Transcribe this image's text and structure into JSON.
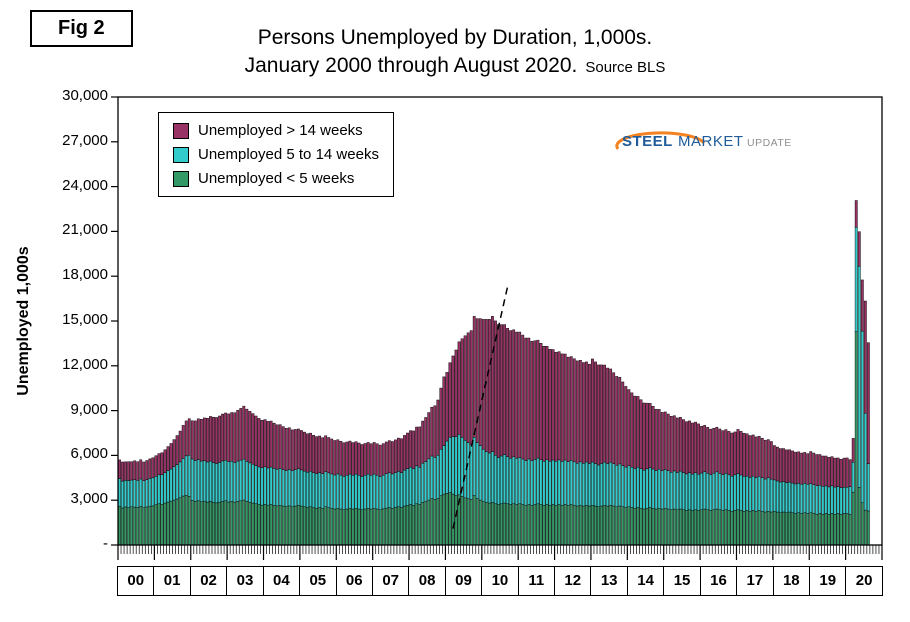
{
  "fig_label": "Fig 2",
  "title": {
    "line1": "Persons Unemployed by Duration, 1,000s.",
    "line2": "January 2000 through August 2020.",
    "source": "Source BLS"
  },
  "logo": {
    "word1": "STEEL",
    "word2": "MARKET",
    "word3": "UPDATE"
  },
  "legend": {
    "items": [
      {
        "label": "Unemployed > 14 weeks",
        "color": "#993366"
      },
      {
        "label": "Unemployed 5 to 14 weeks",
        "color": "#33CCCC"
      },
      {
        "label": "Unemployed < 5 weeks",
        "color": "#339966"
      }
    ]
  },
  "y_axis": {
    "title": "Unemployed 1,000s",
    "tick_values": [
      0,
      3000,
      6000,
      9000,
      12000,
      15000,
      18000,
      21000,
      24000,
      27000,
      30000
    ],
    "tick_labels": [
      "-",
      "3,000",
      "6,000",
      "9,000",
      "12,000",
      "15,000",
      "18,000",
      "21,000",
      "24,000",
      "27,000",
      "30,000"
    ]
  },
  "x_axis": {
    "year_labels": [
      "00",
      "01",
      "02",
      "03",
      "04",
      "05",
      "06",
      "07",
      "08",
      "09",
      "10",
      "11",
      "12",
      "13",
      "14",
      "15",
      "16",
      "17",
      "18",
      "19",
      "20"
    ]
  },
  "chart_data": {
    "type": "bar",
    "stacked": true,
    "title": "Persons Unemployed by Duration, 1,000s. January 2000 through August 2020.",
    "source": "BLS",
    "x_unit": "month",
    "x_start": "2000-01",
    "x_end": "2020-08",
    "x_axis_span_years": [
      "2000",
      "2020"
    ],
    "ylabel": "Unemployed 1,000s",
    "ylim": [
      0,
      30000
    ],
    "y_tick_step": 3000,
    "grid": false,
    "legend_position": "top-left-inside",
    "series": [
      {
        "name": "Unemployed < 5 weeks",
        "color": "#339966",
        "values": [
          2600,
          2480,
          2550,
          2500,
          2560,
          2540,
          2520,
          2580,
          2500,
          2550,
          2600,
          2620,
          2700,
          2760,
          2730,
          2810,
          2880,
          2940,
          3010,
          3080,
          3160,
          3280,
          3320,
          3260,
          2980,
          2920,
          2960,
          2900,
          2940,
          2880,
          2920,
          2860,
          2820,
          2870,
          2930,
          2960,
          2880,
          2930,
          2870,
          2920,
          2960,
          3010,
          2920,
          2860,
          2810,
          2760,
          2710,
          2670,
          2720,
          2670,
          2710,
          2660,
          2620,
          2660,
          2610,
          2570,
          2620,
          2560,
          2610,
          2660,
          2610,
          2560,
          2510,
          2560,
          2500,
          2460,
          2510,
          2460,
          2560,
          2500,
          2460,
          2410,
          2460,
          2410,
          2360,
          2410,
          2460,
          2410,
          2460,
          2410,
          2360,
          2410,
          2460,
          2410,
          2460,
          2410,
          2360,
          2420,
          2470,
          2510,
          2460,
          2510,
          2560,
          2510,
          2610,
          2660,
          2710,
          2660,
          2760,
          2710,
          2860,
          2910,
          3010,
          3110,
          3060,
          3110,
          3310,
          3410,
          3460,
          3510,
          3410,
          3310,
          3360,
          3260,
          3160,
          3110,
          3060,
          3310,
          3110,
          3010,
          2910,
          2860,
          2810,
          2860,
          2760,
          2710,
          2760,
          2810,
          2760,
          2710,
          2760,
          2710,
          2760,
          2710,
          2660,
          2710,
          2660,
          2710,
          2760,
          2710,
          2660,
          2710,
          2660,
          2710,
          2660,
          2710,
          2660,
          2710,
          2660,
          2710,
          2660,
          2610,
          2660,
          2610,
          2660,
          2610,
          2660,
          2610,
          2560,
          2610,
          2660,
          2610,
          2660,
          2610,
          2560,
          2610,
          2560,
          2510,
          2560,
          2510,
          2460,
          2510,
          2460,
          2410,
          2460,
          2510,
          2460,
          2410,
          2460,
          2410,
          2460,
          2410,
          2360,
          2410,
          2360,
          2410,
          2360,
          2310,
          2360,
          2310,
          2360,
          2310,
          2360,
          2410,
          2360,
          2310,
          2360,
          2410,
          2360,
          2310,
          2360,
          2310,
          2260,
          2310,
          2360,
          2310,
          2260,
          2310,
          2260,
          2310,
          2260,
          2310,
          2260,
          2210,
          2260,
          2210,
          2260,
          2210,
          2160,
          2210,
          2160,
          2210,
          2160,
          2110,
          2160,
          2110,
          2160,
          2110,
          2160,
          2110,
          2060,
          2110,
          2060,
          2110,
          2060,
          2110,
          2060,
          2110,
          2060,
          2110,
          2110,
          2060,
          3540,
          14280,
          3860,
          2830,
          2340,
          2280
        ]
      },
      {
        "name": "Unemployed 5 to 14 weeks",
        "color": "#33CCCC",
        "values": [
          1850,
          1800,
          1780,
          1820,
          1790,
          1830,
          1810,
          1840,
          1800,
          1830,
          1860,
          1880,
          1900,
          1940,
          1980,
          2030,
          2090,
          2150,
          2230,
          2310,
          2400,
          2520,
          2650,
          2750,
          2780,
          2740,
          2760,
          2720,
          2700,
          2680,
          2700,
          2660,
          2640,
          2660,
          2700,
          2720,
          2700,
          2680,
          2660,
          2700,
          2720,
          2740,
          2680,
          2640,
          2600,
          2560,
          2520,
          2500,
          2520,
          2490,
          2510,
          2470,
          2450,
          2470,
          2440,
          2420,
          2440,
          2410,
          2430,
          2450,
          2420,
          2390,
          2360,
          2380,
          2340,
          2320,
          2340,
          2310,
          2360,
          2330,
          2300,
          2280,
          2300,
          2270,
          2240,
          2260,
          2290,
          2260,
          2290,
          2260,
          2230,
          2260,
          2290,
          2260,
          2290,
          2260,
          2230,
          2260,
          2300,
          2330,
          2300,
          2330,
          2370,
          2340,
          2410,
          2460,
          2500,
          2460,
          2540,
          2500,
          2620,
          2680,
          2760,
          2850,
          2810,
          2900,
          3100,
          3250,
          3500,
          3700,
          3850,
          3950,
          4050,
          3950,
          3850,
          3750,
          3650,
          3900,
          3750,
          3650,
          3500,
          3400,
          3350,
          3400,
          3250,
          3150,
          3200,
          3250,
          3150,
          3100,
          3150,
          3100,
          3100,
          3050,
          3000,
          3050,
          2980,
          3020,
          3060,
          3000,
          2950,
          3000,
          2950,
          2980,
          2950,
          2990,
          2940,
          2980,
          2920,
          2960,
          2910,
          2870,
          2910,
          2860,
          2900,
          2850,
          2900,
          2850,
          2800,
          2850,
          2890,
          2840,
          2880,
          2830,
          2780,
          2820,
          2760,
          2710,
          2750,
          2700,
          2650,
          2700,
          2650,
          2600,
          2640,
          2680,
          2630,
          2580,
          2620,
          2570,
          2600,
          2560,
          2510,
          2550,
          2500,
          2540,
          2490,
          2450,
          2490,
          2440,
          2480,
          2430,
          2460,
          2500,
          2450,
          2410,
          2450,
          2490,
          2440,
          2400,
          2440,
          2390,
          2350,
          2390,
          2420,
          2380,
          2340,
          2300,
          2270,
          2300,
          2260,
          2290,
          2250,
          2210,
          2240,
          2200,
          2100,
          2080,
          2060,
          2040,
          2020,
          2000,
          1990,
          1980,
          1970,
          1960,
          1970,
          1960,
          1950,
          1930,
          1910,
          1890,
          1870,
          1850,
          1830,
          1850,
          1820,
          1800,
          1780,
          1760,
          1760,
          1850,
          2000,
          7000,
          14810,
          11490,
          6490,
          3170
        ]
      },
      {
        "name": "Unemployed > 14 weeks",
        "color": "#993366",
        "values": [
          1250,
          1280,
          1240,
          1260,
          1230,
          1270,
          1250,
          1290,
          1260,
          1280,
          1310,
          1340,
          1380,
          1420,
          1470,
          1540,
          1620,
          1710,
          1820,
          1940,
          2070,
          2210,
          2340,
          2450,
          2560,
          2650,
          2730,
          2800,
          2870,
          2930,
          2990,
          3040,
          3080,
          3110,
          3140,
          3160,
          3200,
          3260,
          3330,
          3400,
          3470,
          3550,
          3500,
          3450,
          3390,
          3320,
          3250,
          3180,
          3160,
          3120,
          3080,
          3030,
          2980,
          2930,
          2880,
          2830,
          2790,
          2740,
          2700,
          2660,
          2640,
          2610,
          2580,
          2550,
          2510,
          2480,
          2450,
          2420,
          2400,
          2370,
          2340,
          2310,
          2290,
          2270,
          2250,
          2230,
          2210,
          2190,
          2170,
          2160,
          2140,
          2130,
          2120,
          2110,
          2120,
          2110,
          2100,
          2110,
          2130,
          2150,
          2170,
          2200,
          2230,
          2270,
          2320,
          2380,
          2450,
          2520,
          2600,
          2700,
          2820,
          2950,
          3100,
          3270,
          3450,
          3700,
          4100,
          4600,
          4600,
          5000,
          5400,
          5800,
          6200,
          6600,
          7000,
          7350,
          7650,
          8100,
          8300,
          8500,
          8700,
          8850,
          8950,
          9050,
          9000,
          8900,
          8800,
          8700,
          8600,
          8550,
          8500,
          8450,
          8400,
          8300,
          8200,
          8100,
          8000,
          7950,
          7900,
          7800,
          7700,
          7600,
          7500,
          7400,
          7300,
          7250,
          7200,
          7100,
          7000,
          6950,
          6900,
          6850,
          6800,
          6750,
          6700,
          6650,
          6900,
          6800,
          6700,
          6600,
          6500,
          6400,
          6250,
          6100,
          5950,
          5800,
          5600,
          5400,
          5100,
          4980,
          4860,
          4740,
          4620,
          4500,
          4400,
          4300,
          4200,
          4100,
          4000,
          3900,
          3850,
          3800,
          3750,
          3700,
          3650,
          3600,
          3550,
          3500,
          3460,
          3420,
          3390,
          3370,
          3130,
          3100,
          3070,
          3040,
          3010,
          2990,
          2970,
          2950,
          2930,
          2910,
          2890,
          2870,
          2960,
          2920,
          2880,
          2840,
          2800,
          2760,
          2720,
          2680,
          2640,
          2600,
          2560,
          2520,
          2300,
          2270,
          2240,
          2210,
          2190,
          2170,
          2150,
          2130,
          2110,
          2090,
          2070,
          2050,
          2150,
          2120,
          2090,
          2060,
          2030,
          2000,
          1980,
          1960,
          1940,
          1920,
          1900,
          1950,
          1960,
          1810,
          1600,
          1790,
          2310,
          3430,
          7510,
          8100
        ]
      }
    ],
    "annotation_line": {
      "style": "dashed",
      "color": "#000000",
      "from": {
        "month": "2009-03",
        "value": 1100
      },
      "to": {
        "month": "2010-09",
        "value": 17300
      }
    }
  }
}
